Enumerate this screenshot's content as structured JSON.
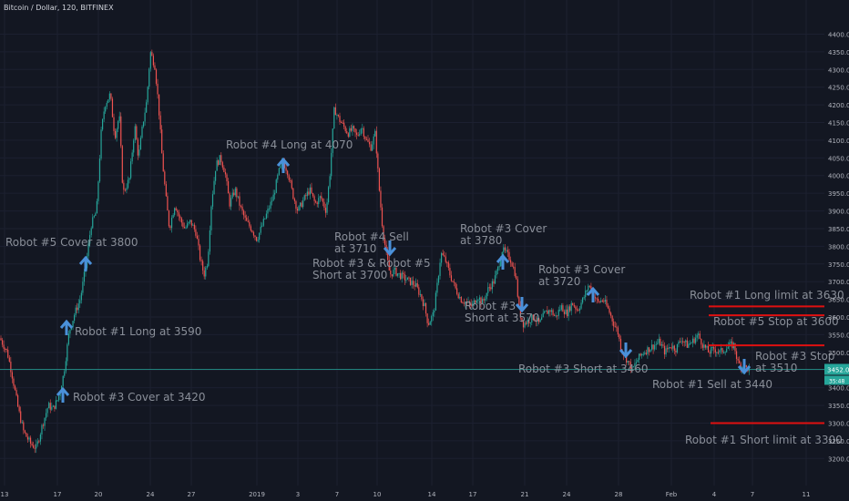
{
  "header": {
    "title": "Bitcoin / Dollar, 120, BITFINEX"
  },
  "colors": {
    "background": "#131722",
    "grid": "#1c2030",
    "up": "#26a69a",
    "down": "#ef5350",
    "arrow": "#4a90d9",
    "annotation": "#8a8f99",
    "limit": "#e01010",
    "price_line": "#26a69a"
  },
  "chart_data": {
    "type": "candlestick",
    "title": "Bitcoin / Dollar, 120, BITFINEX",
    "ylim": [
      3175,
      4445
    ],
    "y_ticks": [
      4400,
      4350,
      4300,
      4250,
      4200,
      4150,
      4100,
      4050,
      4000,
      3950,
      3900,
      3850,
      3800,
      3750,
      3700,
      3650,
      3600,
      3550,
      3500,
      3450,
      3400,
      3350,
      3300,
      3250,
      3200
    ],
    "x_ticks": [
      "13",
      "17",
      "20",
      "24",
      "27",
      "2019",
      "3",
      "7",
      "10",
      "14",
      "17",
      "21",
      "24",
      "28",
      "Feb",
      "4",
      "7",
      "11"
    ],
    "current_price": "3452.0",
    "countdown": "35:48",
    "price_path": [
      [
        0,
        3540
      ],
      [
        8,
        3500
      ],
      [
        13,
        3440
      ],
      [
        20,
        3340
      ],
      [
        26,
        3275
      ],
      [
        34,
        3240
      ],
      [
        40,
        3230
      ],
      [
        46,
        3290
      ],
      [
        53,
        3350
      ],
      [
        58,
        3340
      ],
      [
        64,
        3370
      ],
      [
        70,
        3440
      ],
      [
        76,
        3560
      ],
      [
        82,
        3610
      ],
      [
        88,
        3650
      ],
      [
        94,
        3740
      ],
      [
        100,
        3860
      ],
      [
        106,
        3900
      ],
      [
        111,
        4120
      ],
      [
        115,
        4200
      ],
      [
        121,
        4230
      ],
      [
        126,
        4110
      ],
      [
        131,
        4170
      ],
      [
        135,
        3950
      ],
      [
        142,
        3990
      ],
      [
        148,
        4140
      ],
      [
        152,
        4050
      ],
      [
        157,
        4150
      ],
      [
        161,
        4210
      ],
      [
        165,
        4350
      ],
      [
        170,
        4310
      ],
      [
        174,
        4200
      ],
      [
        178,
        4050
      ],
      [
        182,
        3940
      ],
      [
        186,
        3850
      ],
      [
        192,
        3920
      ],
      [
        197,
        3880
      ],
      [
        203,
        3850
      ],
      [
        209,
        3870
      ],
      [
        215,
        3840
      ],
      [
        220,
        3760
      ],
      [
        224,
        3720
      ],
      [
        228,
        3760
      ],
      [
        232,
        3920
      ],
      [
        237,
        4030
      ],
      [
        242,
        4050
      ],
      [
        247,
        4010
      ],
      [
        252,
        3920
      ],
      [
        258,
        3960
      ],
      [
        264,
        3910
      ],
      [
        270,
        3870
      ],
      [
        276,
        3850
      ],
      [
        282,
        3820
      ],
      [
        288,
        3860
      ],
      [
        294,
        3900
      ],
      [
        300,
        3940
      ],
      [
        306,
        4010
      ],
      [
        311,
        4040
      ],
      [
        316,
        4010
      ],
      [
        321,
        3950
      ],
      [
        327,
        3900
      ],
      [
        333,
        3930
      ],
      [
        340,
        3960
      ],
      [
        346,
        3920
      ],
      [
        352,
        3940
      ],
      [
        358,
        3900
      ],
      [
        362,
        4000
      ],
      [
        367,
        4190
      ],
      [
        372,
        4160
      ],
      [
        377,
        4140
      ],
      [
        382,
        4120
      ],
      [
        387,
        4130
      ],
      [
        392,
        4110
      ],
      [
        397,
        4140
      ],
      [
        402,
        4100
      ],
      [
        407,
        4080
      ],
      [
        412,
        4120
      ],
      [
        416,
        3970
      ],
      [
        420,
        3850
      ],
      [
        424,
        3780
      ],
      [
        428,
        3720
      ],
      [
        433,
        3730
      ],
      [
        438,
        3720
      ],
      [
        444,
        3710
      ],
      [
        450,
        3700
      ],
      [
        456,
        3690
      ],
      [
        462,
        3660
      ],
      [
        466,
        3630
      ],
      [
        470,
        3580
      ],
      [
        476,
        3610
      ],
      [
        480,
        3690
      ],
      [
        484,
        3780
      ],
      [
        489,
        3760
      ],
      [
        494,
        3720
      ],
      [
        500,
        3680
      ],
      [
        506,
        3650
      ],
      [
        512,
        3640
      ],
      [
        518,
        3630
      ],
      [
        524,
        3660
      ],
      [
        530,
        3640
      ],
      [
        536,
        3680
      ],
      [
        542,
        3700
      ],
      [
        547,
        3740
      ],
      [
        551,
        3790
      ],
      [
        556,
        3780
      ],
      [
        561,
        3760
      ],
      [
        566,
        3720
      ],
      [
        570,
        3620
      ],
      [
        574,
        3580
      ],
      [
        580,
        3590
      ],
      [
        586,
        3600
      ],
      [
        592,
        3580
      ],
      [
        598,
        3610
      ],
      [
        604,
        3620
      ],
      [
        610,
        3600
      ],
      [
        616,
        3630
      ],
      [
        622,
        3610
      ],
      [
        628,
        3640
      ],
      [
        634,
        3620
      ],
      [
        640,
        3650
      ],
      [
        646,
        3690
      ],
      [
        651,
        3670
      ],
      [
        656,
        3640
      ],
      [
        662,
        3650
      ],
      [
        668,
        3620
      ],
      [
        674,
        3580
      ],
      [
        678,
        3560
      ],
      [
        682,
        3510
      ],
      [
        688,
        3480
      ],
      [
        694,
        3450
      ],
      [
        700,
        3480
      ],
      [
        706,
        3500
      ],
      [
        712,
        3510
      ],
      [
        718,
        3520
      ],
      [
        724,
        3530
      ],
      [
        730,
        3500
      ],
      [
        736,
        3520
      ],
      [
        742,
        3510
      ],
      [
        748,
        3540
      ],
      [
        754,
        3520
      ],
      [
        760,
        3530
      ],
      [
        766,
        3550
      ],
      [
        772,
        3520
      ],
      [
        778,
        3500
      ],
      [
        784,
        3510
      ],
      [
        790,
        3500
      ],
      [
        796,
        3510
      ],
      [
        802,
        3520
      ],
      [
        806,
        3520
      ],
      [
        810,
        3470
      ],
      [
        815,
        3460
      ],
      [
        820,
        3455
      ],
      [
        824,
        3452
      ]
    ],
    "annotations": [
      {
        "text": "Robot #5 Cover at 3800",
        "arrow": "up"
      },
      {
        "text": "Robot #1 Long at 3590",
        "arrow": "up"
      },
      {
        "text": "Robot #3 Cover at 3420",
        "arrow": "up"
      },
      {
        "text": "Robot #4 Long at 4070",
        "arrow": "up"
      },
      {
        "lines": [
          "Robot #4 Sell",
          "at 3710"
        ],
        "arrow": "down"
      },
      {
        "lines": [
          "Robot #3 & Robot #5",
          "Short at 3700"
        ],
        "arrow": "none"
      },
      {
        "lines": [
          "Robot #3 Cover",
          "at 3780"
        ],
        "arrow": "up"
      },
      {
        "lines": [
          "Robot #3",
          "Short at 3570"
        ],
        "arrow": "down"
      },
      {
        "lines": [
          "Robot #3 Cover",
          "at 3720"
        ],
        "arrow": "up"
      },
      {
        "text": "Robot #3 Short at 3460",
        "arrow": "down"
      },
      {
        "text": "Robot #1 Sell at 3440",
        "arrow": "none"
      },
      {
        "lines": [
          "Robot #3 Stop",
          "at 3510"
        ],
        "arrow": "down"
      },
      {
        "text": "Robot #1 Long limit at 3630",
        "arrow": "none"
      },
      {
        "text": "Robot #5 Stop at 3600",
        "arrow": "none"
      },
      {
        "text": "Robot #1 Short limit at 3300",
        "arrow": "none"
      }
    ],
    "limit_lines": [
      {
        "price": 3630
      },
      {
        "price": 3605
      },
      {
        "price": 3520
      },
      {
        "price": 3300
      }
    ]
  }
}
